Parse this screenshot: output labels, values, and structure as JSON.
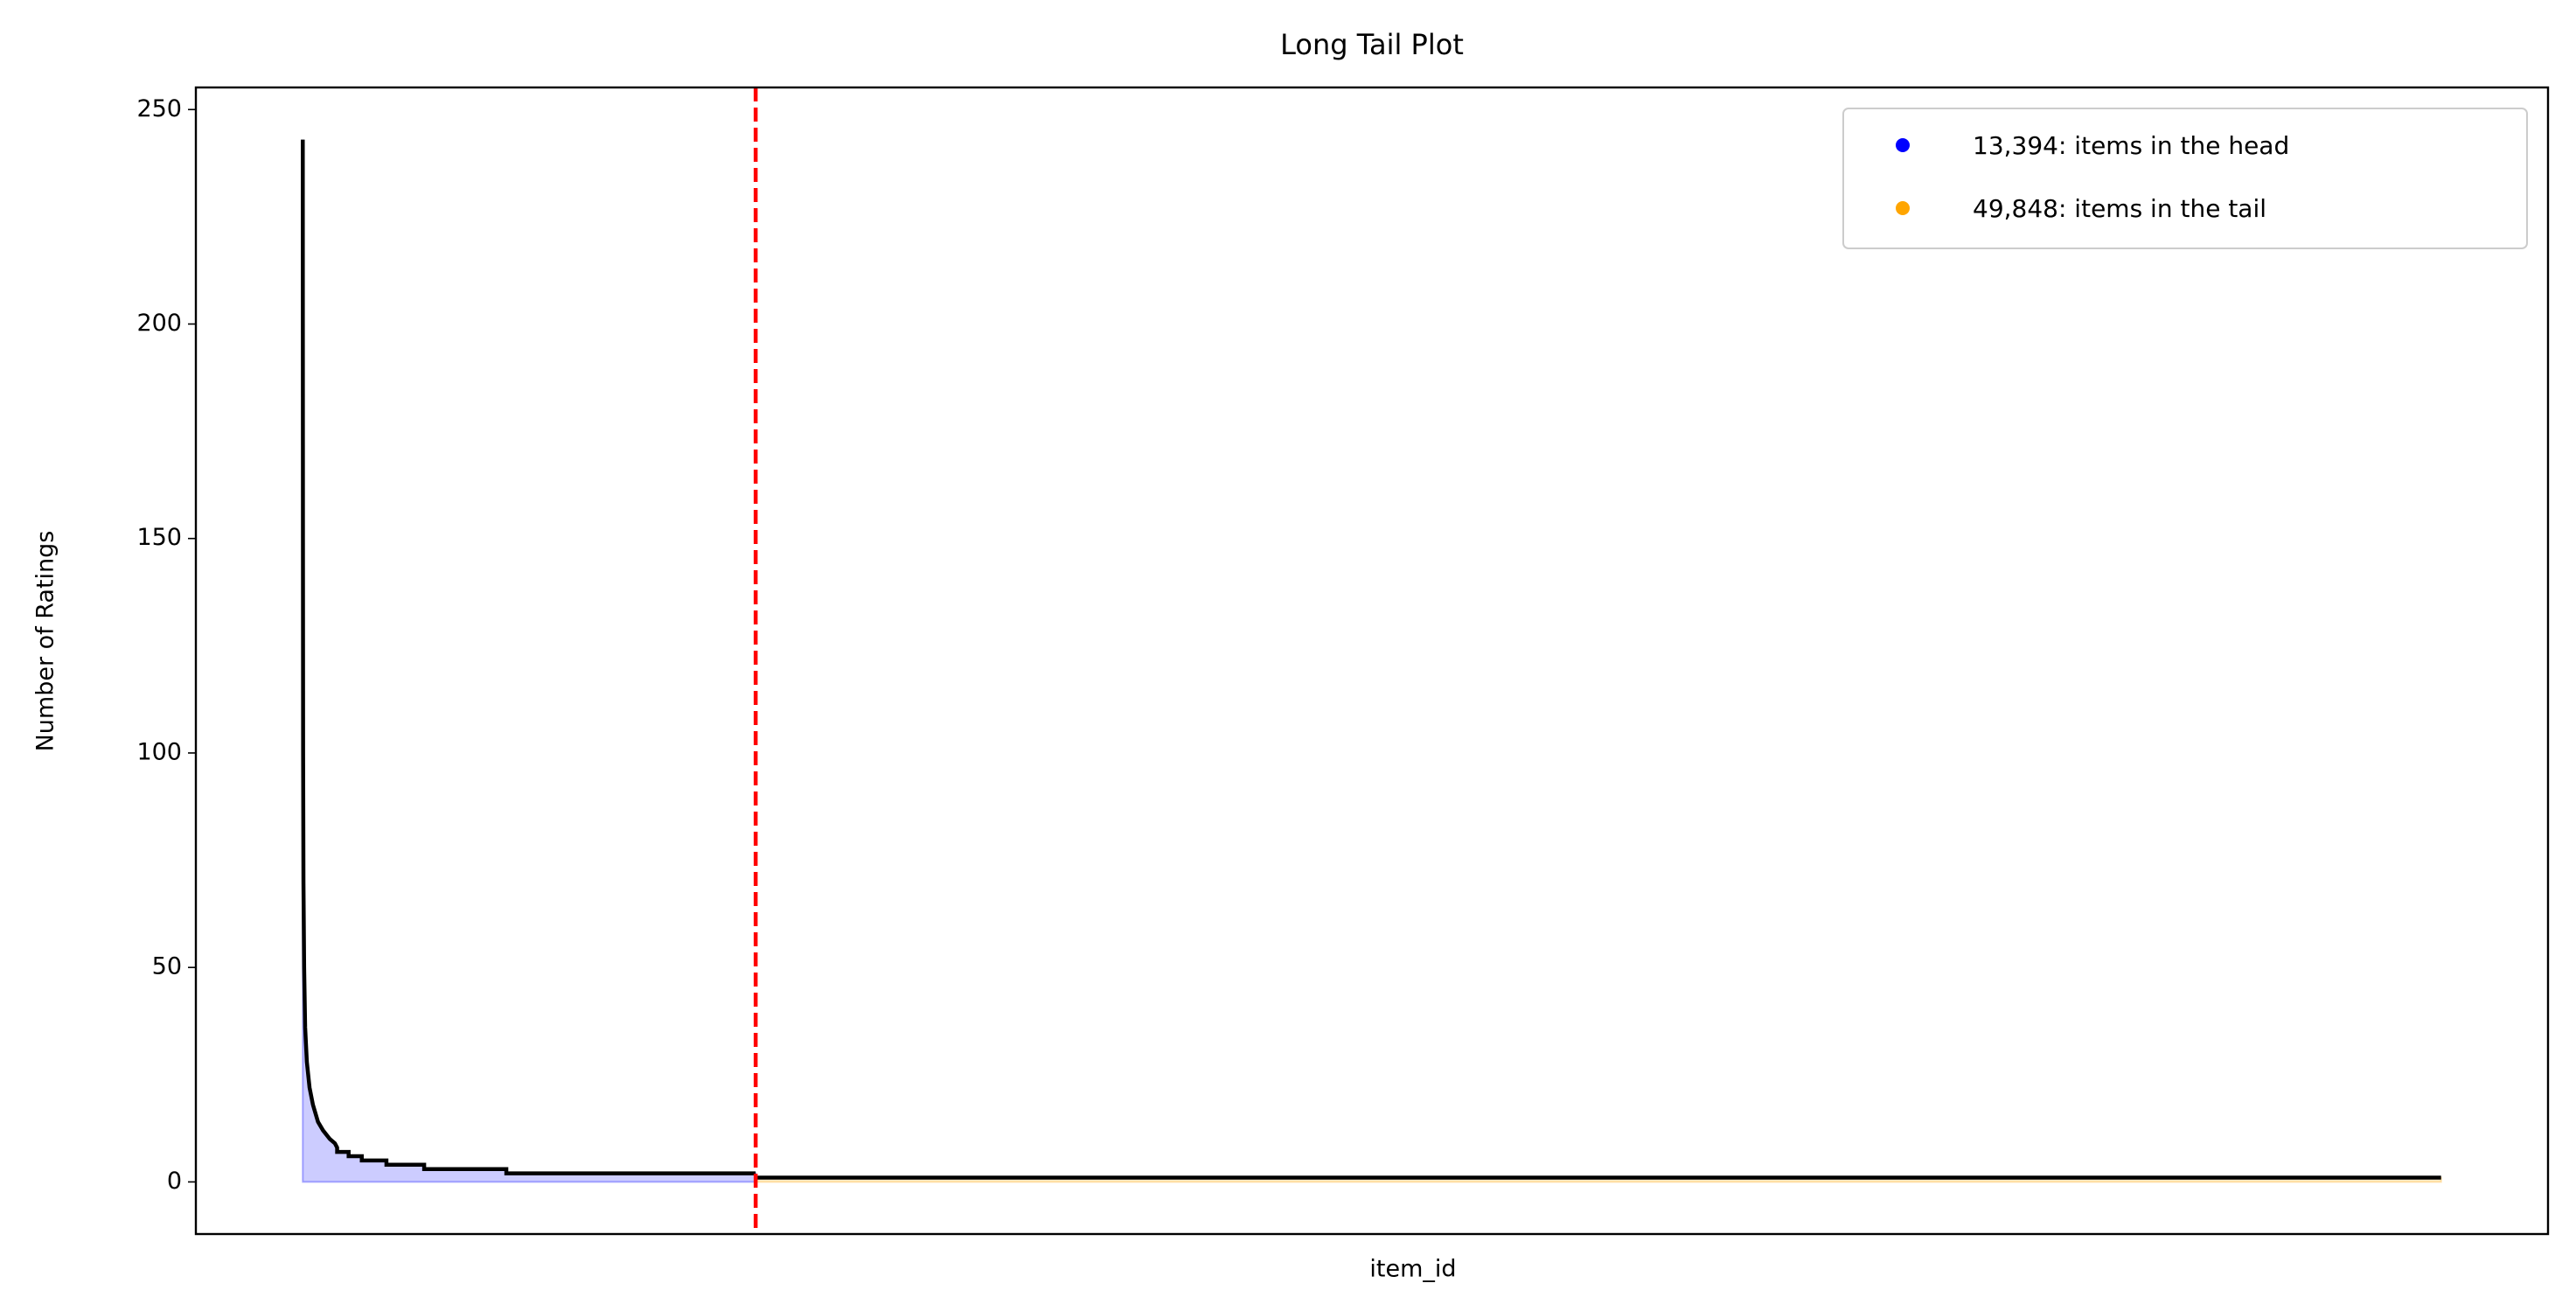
{
  "chart_data": {
    "type": "area",
    "title": "Long Tail Plot",
    "x_label": "item_id",
    "y_label": "Number of Ratings",
    "series": [
      {
        "name": "13,394: items in the head",
        "color": "#0000ff",
        "x": [
          0,
          2,
          5,
          10,
          20,
          40,
          70,
          120,
          200,
          300,
          450,
          600,
          800,
          950,
          1016,
          1016,
          1356,
          1356,
          1745,
          1745,
          2474,
          2474,
          3590,
          3590,
          6020,
          6020,
          13393
        ],
        "values": [
          243,
          200,
          150,
          100,
          70,
          50,
          36,
          28,
          22,
          18,
          14,
          12,
          10,
          9,
          8,
          7,
          7,
          6,
          6,
          5,
          5,
          4,
          4,
          3,
          3,
          2,
          2
        ]
      },
      {
        "name": "49,848: items in the tail",
        "color": "#ffa500",
        "x": [
          13394,
          63241
        ],
        "values": [
          1,
          1
        ]
      }
    ],
    "line_color": "#000000",
    "cutoff_x": 13394,
    "cutoff_color": "#ff0000",
    "xlim": [
      -3162,
      66404
    ],
    "ylim": [
      -12.15,
      255.15
    ],
    "yticks": [
      0,
      50,
      100,
      150,
      200,
      250
    ],
    "legend": "upper right"
  }
}
